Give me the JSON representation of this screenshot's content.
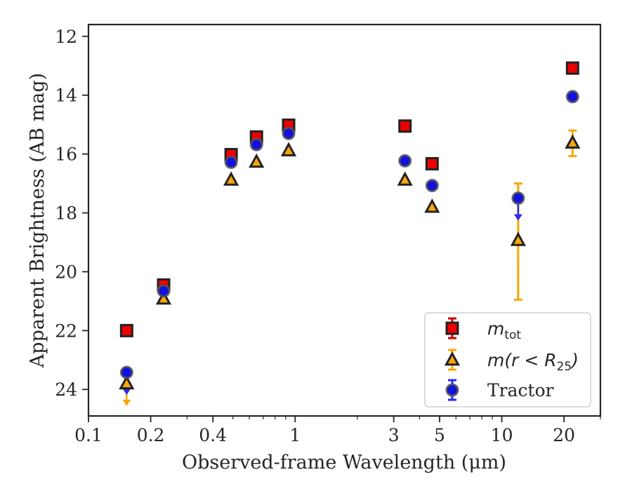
{
  "chart_data": {
    "type": "scatter",
    "xlabel": "Observed-frame Wavelength (μm)",
    "ylabel": "Apparent Brightness (AB mag)",
    "xscale": "log",
    "xlim": [
      0.1,
      30
    ],
    "ylim": [
      24.9,
      11.6
    ],
    "y_inverted": true,
    "grid": false,
    "legend_position": "lower-right",
    "x_ticks": [
      0.1,
      0.2,
      0.4,
      1,
      3,
      5,
      10,
      20
    ],
    "x_tick_labels": [
      "0.1",
      "0.2",
      "0.4",
      "1",
      "3",
      "5",
      "10",
      "20"
    ],
    "y_ticks": [
      12,
      14,
      16,
      18,
      20,
      22,
      24
    ],
    "y_tick_labels": [
      "12",
      "14",
      "16",
      "18",
      "20",
      "22",
      "24"
    ],
    "series": [
      {
        "name": "m_tot",
        "legend_main": "m",
        "legend_sub": "tot",
        "marker": "square",
        "color": "#ee0000",
        "edge": "#222222",
        "error_color": "#cc0000",
        "points": [
          {
            "x": 0.153,
            "y": 22.0
          },
          {
            "x": 0.231,
            "y": 20.45
          },
          {
            "x": 0.49,
            "y": 16.02
          },
          {
            "x": 0.65,
            "y": 15.42
          },
          {
            "x": 0.93,
            "y": 15.02
          },
          {
            "x": 3.4,
            "y": 15.05
          },
          {
            "x": 4.6,
            "y": 16.33
          },
          {
            "x": 22.0,
            "y": 13.08
          }
        ]
      },
      {
        "name": "m(r < R25)",
        "legend_main": "m(r < R",
        "legend_sub": "25",
        "legend_tail": ")",
        "marker": "triangle",
        "color": "#f7a70b",
        "edge": "#222222",
        "error_color": "#f7a70b",
        "points": [
          {
            "x": 0.153,
            "y": 23.8,
            "upper_limit": true
          },
          {
            "x": 0.231,
            "y": 20.92
          },
          {
            "x": 0.49,
            "y": 16.88
          },
          {
            "x": 0.65,
            "y": 16.27
          },
          {
            "x": 0.93,
            "y": 15.88
          },
          {
            "x": 3.4,
            "y": 16.88
          },
          {
            "x": 4.6,
            "y": 17.8
          },
          {
            "x": 12.0,
            "y": 18.93,
            "err_lo": 17.0,
            "err_hi": 20.95
          },
          {
            "x": 22.0,
            "y": 15.62,
            "err_lo": 15.2,
            "err_hi": 16.07
          }
        ]
      },
      {
        "name": "Tractor",
        "legend_main": "Tractor",
        "marker": "circle",
        "color": "#1010e0",
        "edge": "#555555",
        "error_color": "#2a2aee",
        "points": [
          {
            "x": 0.153,
            "y": 23.42,
            "upper_limit": true
          },
          {
            "x": 0.231,
            "y": 20.65
          },
          {
            "x": 0.49,
            "y": 16.28
          },
          {
            "x": 0.65,
            "y": 15.68
          },
          {
            "x": 0.93,
            "y": 15.3
          },
          {
            "x": 3.4,
            "y": 16.23
          },
          {
            "x": 4.6,
            "y": 17.07
          },
          {
            "x": 12.0,
            "y": 17.5,
            "upper_limit": true
          },
          {
            "x": 22.0,
            "y": 14.05
          }
        ]
      }
    ]
  }
}
